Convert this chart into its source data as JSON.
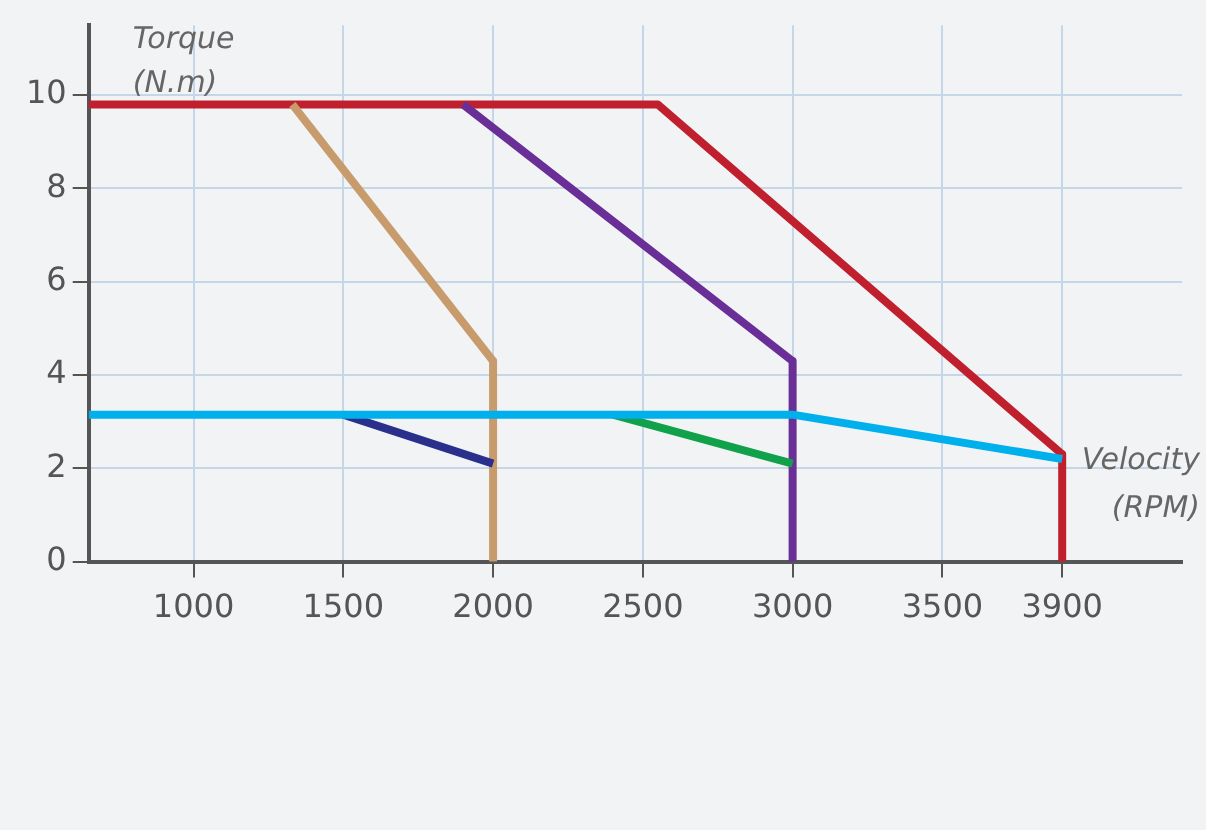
{
  "chart_data": {
    "type": "line",
    "xlabel": "Velocity\n(RPM)",
    "ylabel": "Torque\n(N.m)",
    "xlim": [
      650,
      4300
    ],
    "xticks": [
      1000,
      1500,
      2000,
      2500,
      3000,
      3500,
      3900
    ],
    "ylim": [
      0,
      11.5
    ],
    "yticks": [
      0,
      2,
      4,
      6,
      8,
      10
    ],
    "grid": true,
    "legend": false,
    "line_style": "solid",
    "marker": "none",
    "series": [
      {
        "color": "#00b0ec",
        "x": [
          650,
          3000,
          3900
        ],
        "values": [
          3.15,
          3.15,
          2.2
        ]
      },
      {
        "color": "#2b2f8c",
        "x": [
          1500,
          2000
        ],
        "values": [
          3.15,
          2.1
        ]
      },
      {
        "color": "#10a14a",
        "x": [
          2400,
          3000
        ],
        "values": [
          3.15,
          2.1
        ]
      },
      {
        "color": "#c89b6c",
        "x": [
          1330,
          2000,
          2000
        ],
        "values": [
          9.8,
          4.3,
          0
        ]
      },
      {
        "color": "#6a2f96",
        "x": [
          1900,
          3000,
          3000
        ],
        "values": [
          9.8,
          4.3,
          0
        ]
      },
      {
        "color": "#c0202e",
        "x": [
          650,
          2550,
          3900,
          3900
        ],
        "values": [
          9.8,
          9.8,
          2.3,
          0
        ]
      }
    ]
  }
}
